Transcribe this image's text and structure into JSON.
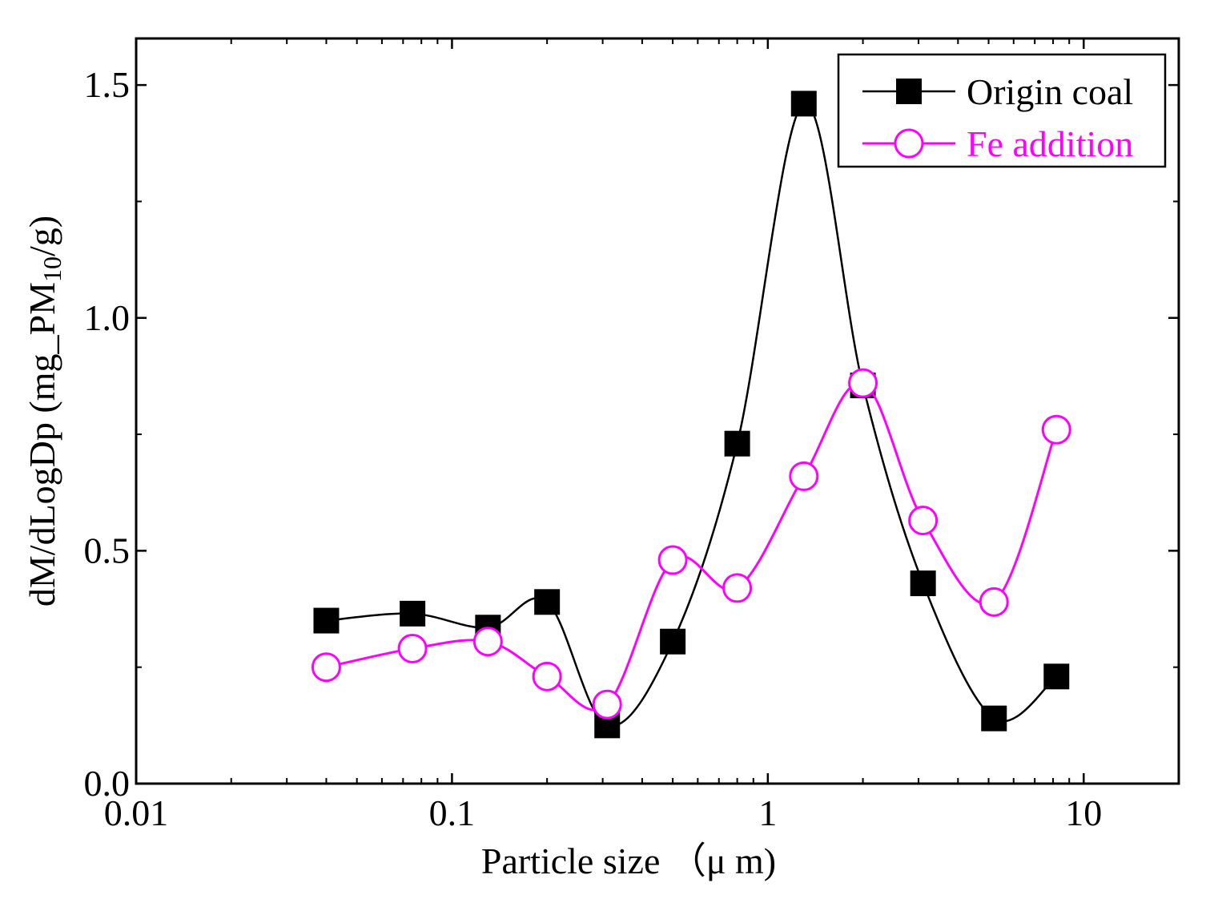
{
  "chart_data": {
    "type": "line",
    "title": "",
    "xlabel": "Particle size （μ m)",
    "ylabel": "dM/dLogDp (mg_PM10/g)",
    "ylabel_parts": {
      "main": "dM/dLogDp (mg_PM",
      "sub": "10",
      "end": "/g)"
    },
    "x_scale": "log",
    "xlim": [
      0.01,
      20
    ],
    "ylim": [
      0,
      1.6
    ],
    "x_ticks": [
      0.01,
      0.1,
      1,
      10
    ],
    "x_tick_labels": [
      "0.01",
      "0.1",
      "1",
      "10"
    ],
    "y_ticks": [
      0.0,
      0.5,
      1.0,
      1.5
    ],
    "y_tick_labels": [
      "0.0",
      "0.5",
      "1.0",
      "1.5"
    ],
    "legend_position": "top-right",
    "grid": false,
    "series": [
      {
        "name": "Origin coal",
        "color": "#000000",
        "marker": "filled-square",
        "x": [
          0.04,
          0.075,
          0.13,
          0.2,
          0.31,
          0.5,
          0.8,
          1.3,
          2.0,
          3.1,
          5.2,
          8.2
        ],
        "y": [
          0.35,
          0.365,
          0.335,
          0.39,
          0.125,
          0.305,
          0.73,
          1.46,
          0.855,
          0.43,
          0.14,
          0.23
        ]
      },
      {
        "name": "Fe addition",
        "color": "#ff00ff",
        "marker": "open-circle",
        "x": [
          0.04,
          0.075,
          0.13,
          0.2,
          0.31,
          0.5,
          0.8,
          1.3,
          2.0,
          3.1,
          5.2,
          8.2
        ],
        "y": [
          0.25,
          0.29,
          0.305,
          0.23,
          0.17,
          0.48,
          0.42,
          0.66,
          0.86,
          0.565,
          0.39,
          0.76
        ]
      }
    ]
  }
}
